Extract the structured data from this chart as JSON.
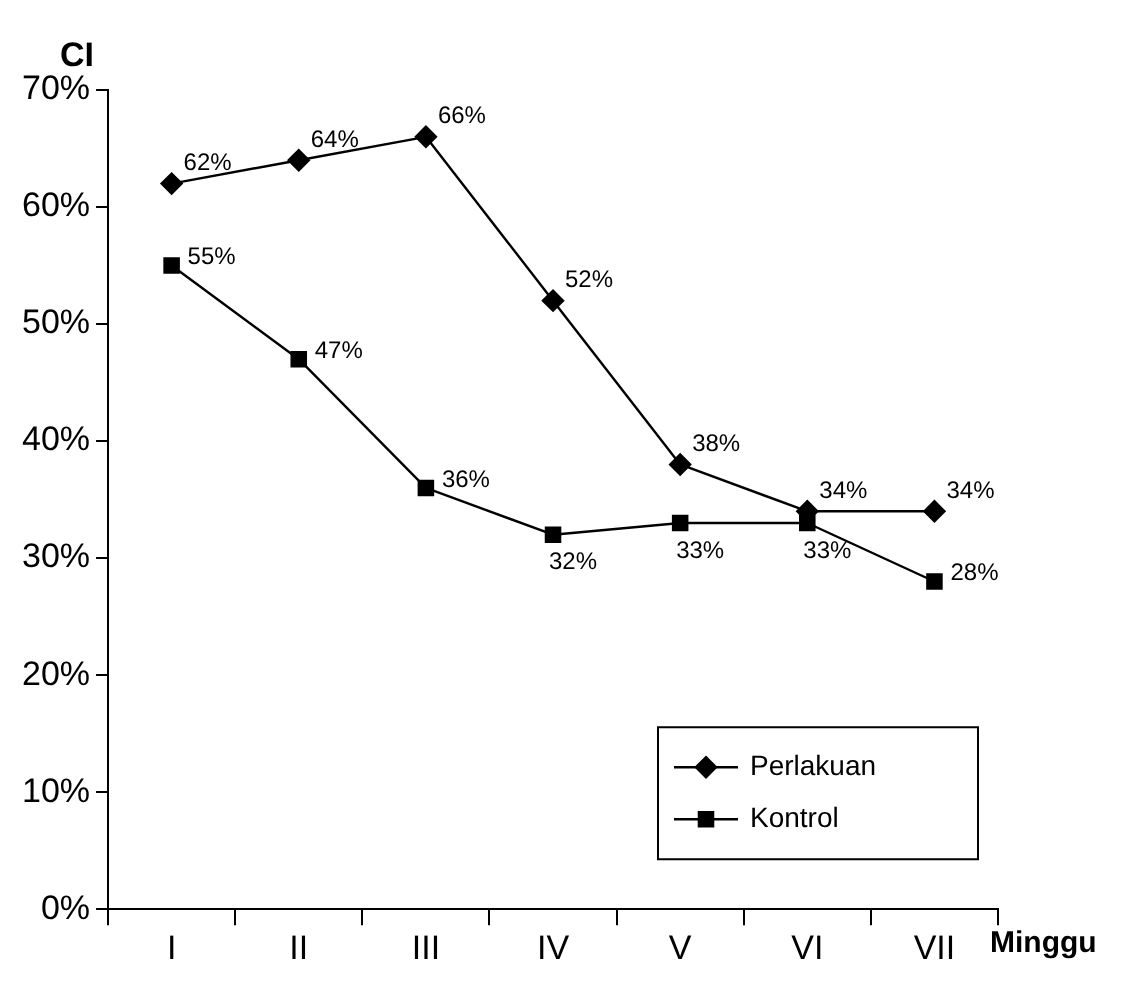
{
  "chart_data": {
    "type": "line",
    "xlabel": "Minggu",
    "ylabel": "CI",
    "categories": [
      "I",
      "II",
      "III",
      "IV",
      "V",
      "VI",
      "VII"
    ],
    "series": [
      {
        "name": "Perlakuan",
        "color": "#000000",
        "marker": "diamond",
        "values": [
          62,
          64,
          66,
          52,
          38,
          34,
          34
        ],
        "value_labels": [
          "62%",
          "64%",
          "66%",
          "52%",
          "38%",
          "34%",
          "34%"
        ]
      },
      {
        "name": "Kontrol",
        "color": "#000000",
        "marker": "square",
        "values": [
          55,
          47,
          36,
          32,
          33,
          33,
          28
        ],
        "value_labels": [
          "55%",
          "47%",
          "36%",
          "32%",
          "33%",
          "33%",
          "28%"
        ]
      }
    ],
    "ylim": [
      0,
      70
    ],
    "yticks": [
      {
        "value": 0,
        "label": "0%"
      },
      {
        "value": 10,
        "label": "10%"
      },
      {
        "value": 20,
        "label": "20%"
      },
      {
        "value": 30,
        "label": "30%"
      },
      {
        "value": 40,
        "label": "40%"
      },
      {
        "value": 50,
        "label": "50%"
      },
      {
        "value": 60,
        "label": "60%"
      },
      {
        "value": 70,
        "label": "70%"
      }
    ],
    "grid": false,
    "legend": "bottom right",
    "line_style": "solid"
  }
}
